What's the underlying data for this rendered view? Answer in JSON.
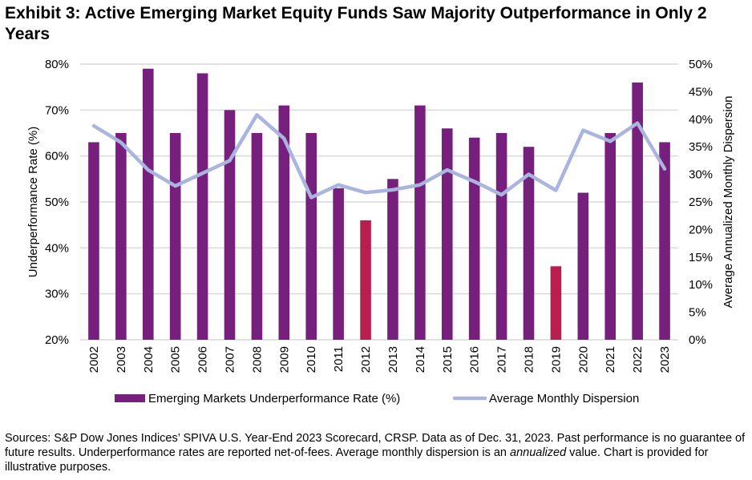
{
  "title": "Exhibit 3: Active Emerging Market Equity Funds Saw Majority Outperformance in Only 2 Years",
  "source": {
    "before": "Sources: S&P Dow Jones Indices’ SPIVA U.S. Year-End 2023 Scorecard, CRSP. Data as of Dec. 31, 2023. Past performance is no guarantee of future results. Underperformance rates are reported net-of-fees. Average monthly dispersion is an ",
    "italic": "annualized",
    "after": " value. Chart is provided for illustrative purposes."
  },
  "chart_data": {
    "type": "bar+line",
    "categories": [
      "2002",
      "2003",
      "2004",
      "2005",
      "2006",
      "2007",
      "2008",
      "2009",
      "2010",
      "2011",
      "2012",
      "2013",
      "2014",
      "2015",
      "2016",
      "2017",
      "2018",
      "2019",
      "2020",
      "2021",
      "2022",
      "2023"
    ],
    "series": [
      {
        "name": "Emerging Markets Underperformance Rate (%)",
        "type": "bar",
        "axis": "left",
        "color": "#771f7d",
        "highlight_color": "#b81f4f",
        "highlighted": [
          "2012",
          "2019"
        ],
        "values": [
          63,
          65,
          79,
          65,
          78,
          70,
          65,
          71,
          65,
          53,
          46,
          55,
          71,
          66,
          64,
          65,
          62,
          36,
          52,
          65,
          76,
          63
        ]
      },
      {
        "name": "Average Monthly Dispersion",
        "type": "line",
        "axis": "right",
        "color": "#a9b5de",
        "values": [
          38.8,
          35.8,
          30.8,
          27.9,
          30.2,
          32.5,
          40.8,
          36.5,
          25.8,
          28.1,
          26.7,
          27.2,
          28.1,
          30.8,
          28.7,
          26.3,
          30.0,
          27.1,
          38.0,
          36.0,
          39.3,
          31.0
        ]
      }
    ],
    "y_left": {
      "label": "Underperformance Rate (%)",
      "range": [
        20,
        80
      ],
      "ticks": [
        "20%",
        "30%",
        "40%",
        "50%",
        "60%",
        "70%",
        "80%"
      ]
    },
    "y_right": {
      "label": "Average Annualized Monthly Dispersion",
      "range": [
        0,
        50
      ],
      "ticks": [
        "0%",
        "5%",
        "10%",
        "15%",
        "20%",
        "25%",
        "30%",
        "35%",
        "40%",
        "45%",
        "50%"
      ]
    },
    "grid": true,
    "legend": "bottom"
  }
}
